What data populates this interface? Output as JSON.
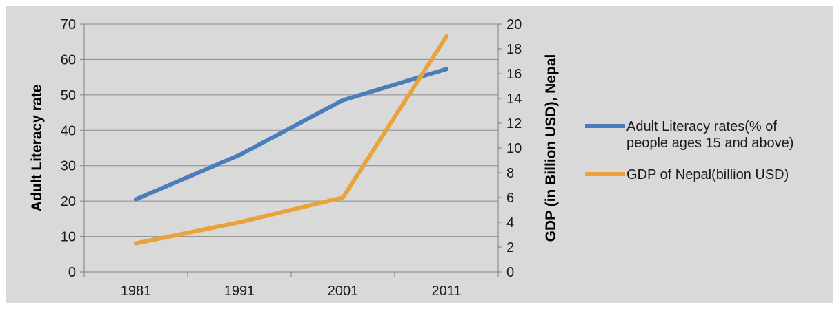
{
  "chart_data": {
    "type": "line",
    "categories": [
      "1981",
      "1991",
      "2001",
      "2011"
    ],
    "series": [
      {
        "name": "Adult Literacy rates(% of people ages 15 and above)",
        "axis": "left",
        "values": [
          20.5,
          33,
          48.5,
          57.3
        ],
        "color": "#4a7ebb"
      },
      {
        "name": "GDP of Nepal(billion USD)",
        "axis": "right",
        "values": [
          2.3,
          4.0,
          6.0,
          19.0
        ],
        "color": "#e8a33d"
      }
    ],
    "y_left": {
      "label": "Adult Literacy rate",
      "ylim": [
        0,
        70
      ],
      "ticks": [
        "0",
        "10",
        "20",
        "30",
        "40",
        "50",
        "60",
        "70"
      ]
    },
    "y_right": {
      "label": "GDP (in Billion USD), Nepal",
      "ylim": [
        0,
        20
      ],
      "ticks": [
        "0",
        "2",
        "4",
        "6",
        "8",
        "10",
        "12",
        "14",
        "16",
        "18",
        "20"
      ]
    },
    "grid": "horizontal",
    "legend_position": "right"
  }
}
